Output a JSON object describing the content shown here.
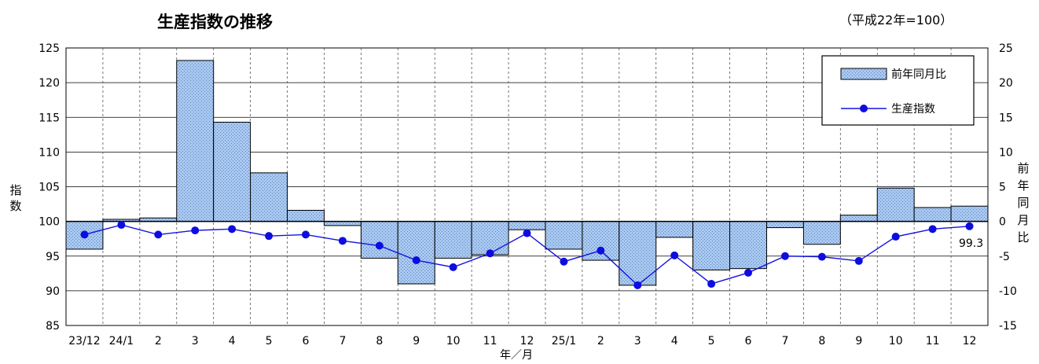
{
  "chart_data": {
    "type": "bar+line",
    "title": "生産指数の推移",
    "subtitle": "（平成22年=100）",
    "ylabel": "指数",
    "ylabel2": "前年同月比",
    "xlabel": "年／月",
    "categories": [
      "23/12",
      "24/1",
      "2",
      "3",
      "4",
      "5",
      "6",
      "7",
      "8",
      "9",
      "10",
      "11",
      "12",
      "25/1",
      "2",
      "3",
      "4",
      "5",
      "6",
      "7",
      "8",
      "9",
      "10",
      "11",
      "12"
    ],
    "ylim": [
      85,
      125
    ],
    "yticks": [
      85,
      90,
      95,
      100,
      105,
      110,
      115,
      120,
      125
    ],
    "y2lim": [
      -15,
      25
    ],
    "y2ticks": [
      -15,
      -10,
      -5,
      0,
      5,
      10,
      15,
      20,
      25
    ],
    "grid": true,
    "legend_position": "top-right",
    "series": [
      {
        "name": "前年同月比",
        "type": "bar",
        "axis": "right",
        "color": "#a8c8f0",
        "values": [
          -4.0,
          0.3,
          0.5,
          23.2,
          14.3,
          7.0,
          1.6,
          -0.6,
          -5.3,
          -9.0,
          -5.3,
          -4.8,
          -1.2,
          -4.0,
          -5.6,
          -9.2,
          -2.3,
          -7.0,
          -6.8,
          -0.9,
          -3.3,
          0.9,
          4.8,
          2.0,
          2.2
        ]
      },
      {
        "name": "生産指数",
        "type": "line",
        "axis": "left",
        "color": "#1414e0",
        "values": [
          98.1,
          99.5,
          98.1,
          98.7,
          98.9,
          97.9,
          98.1,
          97.2,
          96.5,
          94.4,
          93.4,
          95.4,
          98.3,
          94.2,
          95.8,
          90.8,
          95.1,
          91.0,
          92.6,
          95.0,
          94.9,
          94.3,
          97.8,
          98.9,
          99.3
        ]
      }
    ],
    "annotations": [
      {
        "text": "99.3",
        "series": "生産指数",
        "index": 24
      }
    ]
  }
}
